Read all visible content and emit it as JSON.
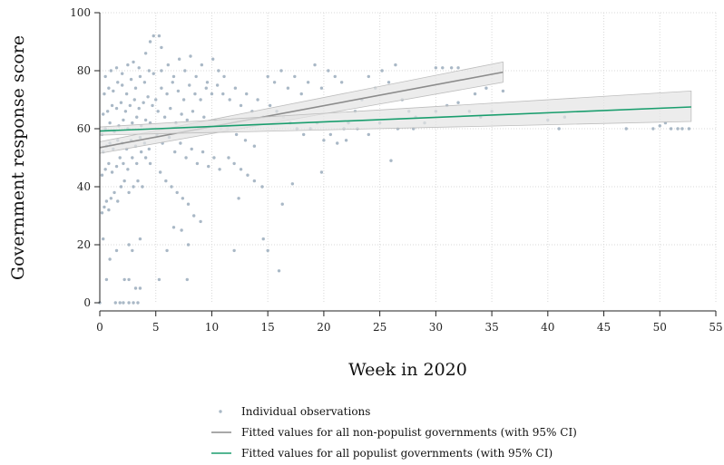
{
  "colors": {
    "points": "#a9b8c6",
    "nonpopulist": "#8c8c8c",
    "populist": "#1a9e6e",
    "ci_fill": "#e4e4e4",
    "ci_edge": "#bdbdbd",
    "grid": "#d8d8d8",
    "axis": "#222222"
  },
  "chart_data": {
    "type": "scatter",
    "title": "",
    "xlabel": "Week in 2020",
    "ylabel": "Government response score",
    "xlim": [
      0,
      55
    ],
    "ylim": [
      0,
      100
    ],
    "xticks": [
      0,
      5,
      10,
      15,
      20,
      25,
      30,
      35,
      40,
      45,
      50,
      55
    ],
    "yticks": [
      0,
      20,
      40,
      60,
      80,
      100
    ],
    "grid": true,
    "legend_position": "bottom",
    "legend": [
      {
        "label": "Individual observations",
        "kind": "point"
      },
      {
        "label": "Fitted values for all non-populist governments (with 95% CI)",
        "kind": "line-gray"
      },
      {
        "label": "Fitted values for all populist governments (with 95% CI)",
        "kind": "line-green"
      }
    ],
    "fits": [
      {
        "group": "non-populist",
        "x": [
          0,
          36
        ],
        "y": [
          53.5,
          79.5
        ],
        "ci_lower": [
          51.5,
          76
        ],
        "ci_upper": [
          55.5,
          83
        ]
      },
      {
        "group": "populist",
        "x": [
          0,
          52.8
        ],
        "y": [
          59.2,
          67.5
        ],
        "ci_lower": [
          57.8,
          62.5
        ],
        "ci_upper": [
          60.6,
          73
        ]
      }
    ],
    "points": [
      [
        0,
        0
      ],
      [
        0.3,
        22
      ],
      [
        0.6,
        8
      ],
      [
        0.9,
        15
      ],
      [
        1.4,
        0
      ],
      [
        1.8,
        0
      ],
      [
        2.1,
        0
      ],
      [
        2.6,
        0
      ],
      [
        3.0,
        0
      ],
      [
        3.4,
        0
      ],
      [
        2.2,
        8
      ],
      [
        2.6,
        8
      ],
      [
        3.2,
        5
      ],
      [
        3.6,
        5
      ],
      [
        1.5,
        18
      ],
      [
        2.6,
        20
      ],
      [
        2.9,
        18
      ],
      [
        3.6,
        22
      ],
      [
        0.2,
        31
      ],
      [
        0.4,
        33
      ],
      [
        0.6,
        35
      ],
      [
        0.8,
        32
      ],
      [
        1.0,
        36
      ],
      [
        1.3,
        38
      ],
      [
        1.6,
        35
      ],
      [
        1.9,
        40
      ],
      [
        2.2,
        42
      ],
      [
        2.6,
        38
      ],
      [
        3.0,
        40
      ],
      [
        3.4,
        42
      ],
      [
        3.8,
        40
      ],
      [
        0.2,
        44
      ],
      [
        0.5,
        46
      ],
      [
        0.8,
        48
      ],
      [
        1.1,
        45
      ],
      [
        1.5,
        47
      ],
      [
        1.8,
        50
      ],
      [
        2.1,
        48
      ],
      [
        2.5,
        46
      ],
      [
        2.9,
        50
      ],
      [
        3.3,
        48
      ],
      [
        3.7,
        52
      ],
      [
        4.1,
        50
      ],
      [
        4.5,
        48
      ],
      [
        0.3,
        52
      ],
      [
        0.6,
        54
      ],
      [
        0.9,
        55
      ],
      [
        1.2,
        53
      ],
      [
        1.6,
        56
      ],
      [
        2.0,
        55
      ],
      [
        2.4,
        53
      ],
      [
        2.8,
        56
      ],
      [
        3.2,
        54
      ],
      [
        3.6,
        57
      ],
      [
        4.0,
        55
      ],
      [
        4.4,
        53
      ],
      [
        0.2,
        58
      ],
      [
        0.5,
        60
      ],
      [
        0.9,
        62
      ],
      [
        1.3,
        59
      ],
      [
        1.7,
        61
      ],
      [
        2.1,
        63
      ],
      [
        2.5,
        60
      ],
      [
        2.9,
        62
      ],
      [
        3.3,
        64
      ],
      [
        3.7,
        61
      ],
      [
        4.1,
        63
      ],
      [
        4.5,
        62
      ],
      [
        0.3,
        65
      ],
      [
        0.7,
        66
      ],
      [
        1.1,
        68
      ],
      [
        1.5,
        67
      ],
      [
        1.9,
        69
      ],
      [
        2.3,
        66
      ],
      [
        2.7,
        68
      ],
      [
        3.1,
        70
      ],
      [
        3.5,
        67
      ],
      [
        3.9,
        69
      ],
      [
        4.3,
        71
      ],
      [
        4.7,
        68
      ],
      [
        0.4,
        72
      ],
      [
        0.8,
        74
      ],
      [
        1.2,
        73
      ],
      [
        1.6,
        76
      ],
      [
        2.0,
        75
      ],
      [
        2.4,
        72
      ],
      [
        2.8,
        77
      ],
      [
        3.2,
        74
      ],
      [
        3.6,
        78
      ],
      [
        4.0,
        76
      ],
      [
        4.4,
        80
      ],
      [
        4.8,
        79
      ],
      [
        0.5,
        78
      ],
      [
        1.0,
        80
      ],
      [
        1.5,
        81
      ],
      [
        2.0,
        79
      ],
      [
        2.5,
        82
      ],
      [
        3.0,
        83
      ],
      [
        3.5,
        81
      ],
      [
        4.1,
        86
      ],
      [
        4.5,
        90
      ],
      [
        4.8,
        92
      ],
      [
        5.3,
        92
      ],
      [
        5.5,
        88
      ],
      [
        5.0,
        70
      ],
      [
        5.5,
        74
      ],
      [
        6.0,
        72
      ],
      [
        6.5,
        76
      ],
      [
        7.0,
        73
      ],
      [
        7.5,
        70
      ],
      [
        8.0,
        75
      ],
      [
        8.5,
        72
      ],
      [
        9.0,
        70
      ],
      [
        9.5,
        74
      ],
      [
        10.0,
        72
      ],
      [
        10.5,
        75
      ],
      [
        5.2,
        66
      ],
      [
        5.8,
        64
      ],
      [
        6.3,
        67
      ],
      [
        6.8,
        62
      ],
      [
        7.3,
        65
      ],
      [
        7.8,
        63
      ],
      [
        8.3,
        66
      ],
      [
        8.8,
        60
      ],
      [
        9.3,
        64
      ],
      [
        9.8,
        61
      ],
      [
        10.3,
        63
      ],
      [
        10.8,
        60
      ],
      [
        5.1,
        58
      ],
      [
        5.6,
        55
      ],
      [
        6.2,
        57
      ],
      [
        6.7,
        52
      ],
      [
        7.2,
        55
      ],
      [
        7.7,
        50
      ],
      [
        8.2,
        53
      ],
      [
        8.7,
        48
      ],
      [
        9.2,
        52
      ],
      [
        9.7,
        47
      ],
      [
        10.2,
        50
      ],
      [
        10.7,
        46
      ],
      [
        5.4,
        45
      ],
      [
        5.9,
        42
      ],
      [
        6.4,
        40
      ],
      [
        6.9,
        38
      ],
      [
        7.4,
        36
      ],
      [
        7.9,
        34
      ],
      [
        8.4,
        30
      ],
      [
        9.0,
        28
      ],
      [
        6.6,
        26
      ],
      [
        7.3,
        25
      ],
      [
        7.9,
        20
      ],
      [
        6.0,
        18
      ],
      [
        7.8,
        8
      ],
      [
        5.3,
        8
      ],
      [
        5.5,
        80
      ],
      [
        6.1,
        82
      ],
      [
        6.6,
        78
      ],
      [
        7.1,
        84
      ],
      [
        7.6,
        80
      ],
      [
        8.1,
        85
      ],
      [
        8.6,
        78
      ],
      [
        9.1,
        82
      ],
      [
        9.6,
        76
      ],
      [
        10.1,
        84
      ],
      [
        10.6,
        80
      ],
      [
        11.1,
        78
      ],
      [
        11.0,
        72
      ],
      [
        11.6,
        70
      ],
      [
        12.1,
        74
      ],
      [
        12.6,
        68
      ],
      [
        13.1,
        72
      ],
      [
        13.6,
        66
      ],
      [
        14.1,
        70
      ],
      [
        14.6,
        64
      ],
      [
        11.4,
        60
      ],
      [
        12.2,
        58
      ],
      [
        13.0,
        56
      ],
      [
        13.8,
        54
      ],
      [
        11.5,
        50
      ],
      [
        12.0,
        48
      ],
      [
        12.6,
        46
      ],
      [
        13.2,
        44
      ],
      [
        13.8,
        42
      ],
      [
        14.5,
        40
      ],
      [
        12.4,
        36
      ],
      [
        12.0,
        18
      ],
      [
        14.6,
        22
      ],
      [
        15.0,
        18
      ],
      [
        16.0,
        11
      ],
      [
        16.3,
        34
      ],
      [
        17.2,
        41
      ],
      [
        15.0,
        78
      ],
      [
        15.6,
        76
      ],
      [
        16.2,
        80
      ],
      [
        16.8,
        74
      ],
      [
        17.4,
        78
      ],
      [
        18.0,
        72
      ],
      [
        18.6,
        76
      ],
      [
        19.2,
        82
      ],
      [
        19.8,
        74
      ],
      [
        20.4,
        80
      ],
      [
        21.0,
        78
      ],
      [
        21.6,
        76
      ],
      [
        15.2,
        68
      ],
      [
        15.8,
        66
      ],
      [
        16.4,
        64
      ],
      [
        17.0,
        62
      ],
      [
        17.6,
        60
      ],
      [
        18.2,
        58
      ],
      [
        18.8,
        60
      ],
      [
        19.4,
        62
      ],
      [
        20.0,
        56
      ],
      [
        20.6,
        58
      ],
      [
        21.2,
        55
      ],
      [
        21.8,
        60
      ],
      [
        19.8,
        45
      ],
      [
        22.2,
        62
      ],
      [
        22.8,
        66
      ],
      [
        23.4,
        70
      ],
      [
        24.0,
        78
      ],
      [
        24.6,
        74
      ],
      [
        25.2,
        80
      ],
      [
        25.8,
        76
      ],
      [
        26.4,
        82
      ],
      [
        27.0,
        70
      ],
      [
        27.6,
        66
      ],
      [
        28.2,
        64
      ],
      [
        22.0,
        56
      ],
      [
        23.0,
        60
      ],
      [
        24.0,
        58
      ],
      [
        25.0,
        62
      ],
      [
        26.0,
        49
      ],
      [
        26.6,
        60
      ],
      [
        28.0,
        60
      ],
      [
        29.0,
        62
      ],
      [
        30.0,
        81
      ],
      [
        30.6,
        81
      ],
      [
        31.4,
        81
      ],
      [
        32.0,
        81
      ],
      [
        30.0,
        66
      ],
      [
        31.0,
        68
      ],
      [
        32.0,
        69
      ],
      [
        33.0,
        66
      ],
      [
        34.0,
        64
      ],
      [
        35.0,
        66
      ],
      [
        36.0,
        73
      ],
      [
        33.5,
        72
      ],
      [
        34.5,
        74
      ],
      [
        40.0,
        63
      ],
      [
        41.0,
        60
      ],
      [
        41.5,
        64
      ],
      [
        47.0,
        60
      ],
      [
        49.4,
        60
      ],
      [
        50.0,
        61
      ],
      [
        51.0,
        60
      ],
      [
        51.6,
        60
      ],
      [
        52.0,
        60
      ],
      [
        52.6,
        60
      ],
      [
        50.5,
        62
      ]
    ]
  }
}
